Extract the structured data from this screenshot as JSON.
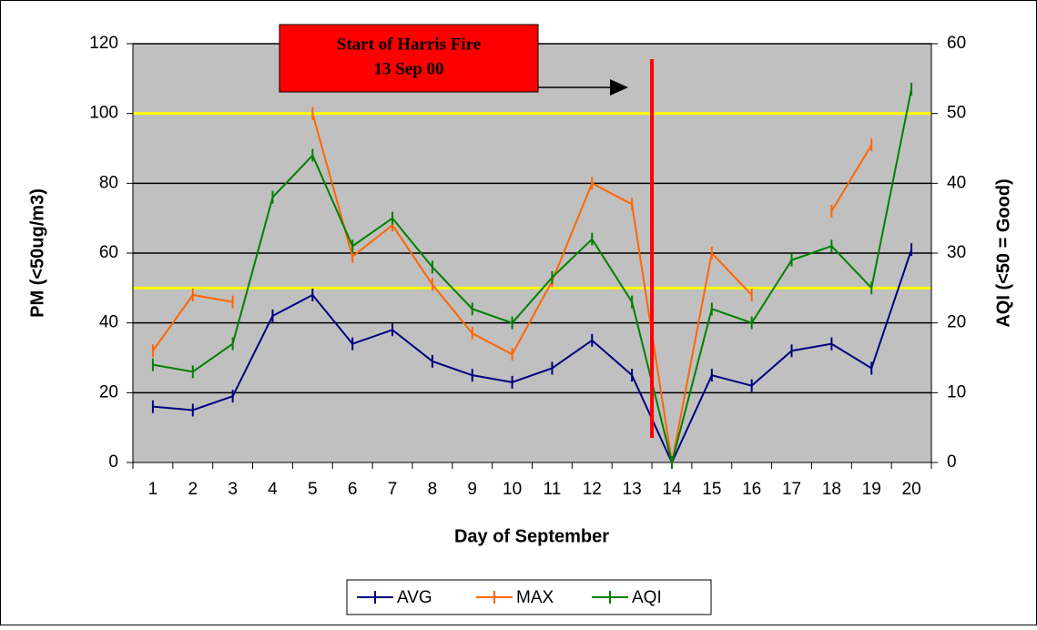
{
  "chart_data": {
    "type": "line",
    "x_label": "Day of September",
    "y_label": "PM (<50ug/m3)",
    "y2_label": "AQI (<50 = Good)",
    "categories": [
      "1",
      "2",
      "3",
      "4",
      "5",
      "6",
      "7",
      "8",
      "9",
      "10",
      "11",
      "12",
      "13",
      "14",
      "15",
      "16",
      "17",
      "18",
      "19",
      "20"
    ],
    "series": [
      {
        "name": "AVG",
        "color": "#000080",
        "values": [
          16,
          15,
          19,
          42,
          48,
          34,
          38,
          29,
          25,
          23,
          27,
          35,
          25,
          0,
          25,
          22,
          32,
          34,
          27,
          61
        ]
      },
      {
        "name": "MAX",
        "color": "#ff6600",
        "values": [
          32,
          48,
          46,
          null,
          100,
          59,
          68,
          51,
          37,
          31,
          52,
          80,
          74,
          0,
          60,
          48,
          null,
          72,
          91,
          null
        ]
      },
      {
        "name": "AQI",
        "color": "#008000",
        "axis": "y2",
        "values": [
          14,
          13,
          17,
          38,
          44,
          31,
          35,
          28,
          22,
          20,
          26.5,
          32,
          23,
          0,
          22,
          20,
          29,
          31,
          25,
          53.5
        ]
      }
    ],
    "ylim": [
      0,
      120
    ],
    "yticks": [
      0,
      20,
      40,
      60,
      80,
      100,
      120
    ],
    "y2lim": [
      0,
      60
    ],
    "y2ticks": [
      0,
      10,
      20,
      30,
      40,
      50,
      60
    ],
    "grid": true,
    "reference_lines": [
      {
        "value": 100,
        "color": "#ffff00"
      },
      {
        "value": 50,
        "color": "#ffff00"
      }
    ],
    "event_line": {
      "position": 13.5,
      "color": "#ff0000"
    },
    "annotation": {
      "lines": [
        "Start of Harris Fire",
        "13 Sep 00"
      ],
      "color": "#ff0000"
    },
    "legend": "bottom"
  }
}
